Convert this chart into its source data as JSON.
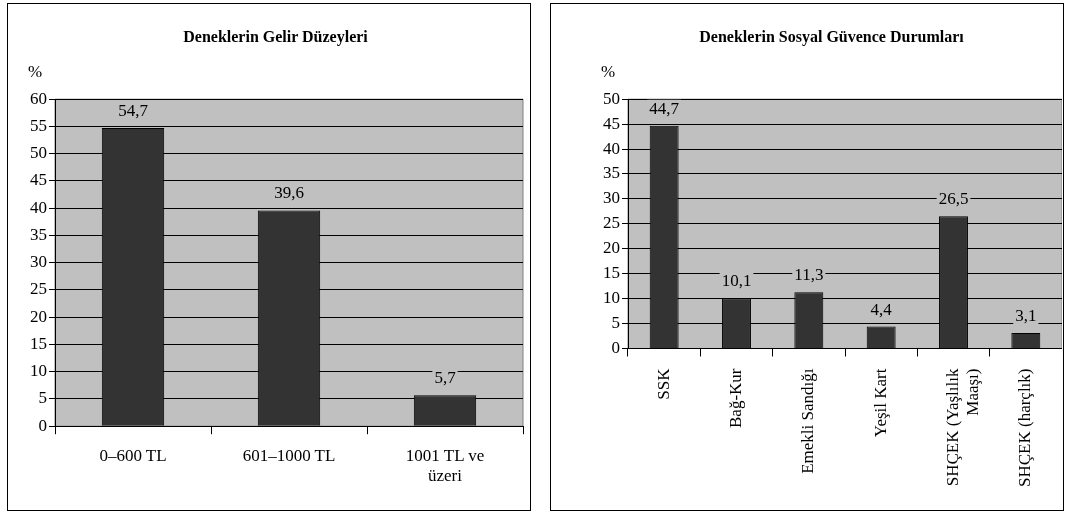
{
  "chart_data": [
    {
      "type": "bar",
      "title": "Deneklerin Gelir Düzeyleri",
      "ylabel": "%",
      "categories": [
        "0–600 TL",
        "601–1000 TL",
        "1001 TL ve üzeri"
      ],
      "values": [
        54.7,
        39.6,
        5.7
      ],
      "value_labels": [
        "54,7",
        "39,6",
        "5,7"
      ],
      "color": "#333333",
      "ylim": [
        0,
        60
      ],
      "yticks": [
        0,
        5,
        10,
        15,
        20,
        25,
        30,
        35,
        40,
        45,
        50,
        55,
        60
      ],
      "grid": "y"
    },
    {
      "type": "bar",
      "title": "Deneklerin Sosyal Güvence Durumları",
      "ylabel": "%",
      "categories": [
        "SSK",
        "Bağ-Kur",
        "Emekli Sandığı",
        "Yeşil Kart",
        "SHÇEK (Yaşlılık Maaşı)",
        "SHÇEK (harçlık)"
      ],
      "values": [
        44.7,
        10.1,
        11.3,
        4.4,
        26.5,
        3.1
      ],
      "value_labels": [
        "44,7",
        "10,1",
        "11,3",
        "4,4",
        "26,5",
        "3,1"
      ],
      "color": "#333333",
      "ylim": [
        0,
        50
      ],
      "yticks": [
        0,
        5,
        10,
        15,
        20,
        25,
        30,
        35,
        40,
        45,
        50
      ],
      "grid": "y"
    }
  ]
}
